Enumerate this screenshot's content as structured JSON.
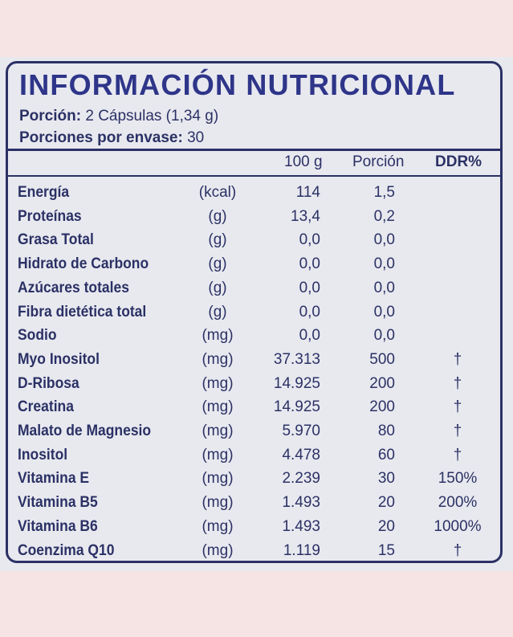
{
  "title": "INFORMACIÓN NUTRICIONAL",
  "serving_size": {
    "label": "Porción:",
    "value": "2 Cápsulas (1,34 g)"
  },
  "servings_per_container": {
    "label": "Porciones por envase:",
    "value": "30"
  },
  "columns": {
    "per_100g": "100 g",
    "per_serving": "Porción",
    "ddr": "DDR%"
  },
  "colors": {
    "text": "#2b3165",
    "title": "#2e3589",
    "panel": "#e8e9ef",
    "page": "#f6e3e4"
  },
  "rows": [
    {
      "name": "Energía",
      "unit": "(kcal)",
      "per_100g": "114",
      "per_serving": "1,5",
      "ddr": ""
    },
    {
      "name": "Proteínas",
      "unit": "(g)",
      "per_100g": "13,4",
      "per_serving": "0,2",
      "ddr": ""
    },
    {
      "name": "Grasa Total",
      "unit": "(g)",
      "per_100g": "0,0",
      "per_serving": "0,0",
      "ddr": ""
    },
    {
      "name": "Hidrato de Carbono",
      "unit": "(g)",
      "per_100g": "0,0",
      "per_serving": "0,0",
      "ddr": ""
    },
    {
      "name": "Azúcares totales",
      "unit": "(g)",
      "per_100g": "0,0",
      "per_serving": "0,0",
      "ddr": ""
    },
    {
      "name": "Fibra dietética total",
      "unit": "(g)",
      "per_100g": "0,0",
      "per_serving": "0,0",
      "ddr": ""
    },
    {
      "name": "Sodio",
      "unit": "(mg)",
      "per_100g": "0,0",
      "per_serving": "0,0",
      "ddr": ""
    },
    {
      "name": "Myo Inositol",
      "unit": "(mg)",
      "per_100g": "37.313",
      "per_serving": "500",
      "ddr": "†"
    },
    {
      "name": "D-Ribosa",
      "unit": "(mg)",
      "per_100g": "14.925",
      "per_serving": "200",
      "ddr": "†"
    },
    {
      "name": "Creatina",
      "unit": "(mg)",
      "per_100g": "14.925",
      "per_serving": "200",
      "ddr": "†"
    },
    {
      "name": "Malato de Magnesio",
      "unit": "(mg)",
      "per_100g": "5.970",
      "per_serving": "80",
      "ddr": "†"
    },
    {
      "name": "Inositol",
      "unit": "(mg)",
      "per_100g": "4.478",
      "per_serving": "60",
      "ddr": "†"
    },
    {
      "name": "Vitamina E",
      "unit": "(mg)",
      "per_100g": "2.239",
      "per_serving": "30",
      "ddr": "150%"
    },
    {
      "name": "Vitamina B5",
      "unit": "(mg)",
      "per_100g": "1.493",
      "per_serving": "20",
      "ddr": "200%"
    },
    {
      "name": "Vitamina B6",
      "unit": "(mg)",
      "per_100g": "1.493",
      "per_serving": "20",
      "ddr": "1000%"
    },
    {
      "name": "Coenzima Q10",
      "unit": "(mg)",
      "per_100g": "1.119",
      "per_serving": "15",
      "ddr": "†"
    }
  ]
}
